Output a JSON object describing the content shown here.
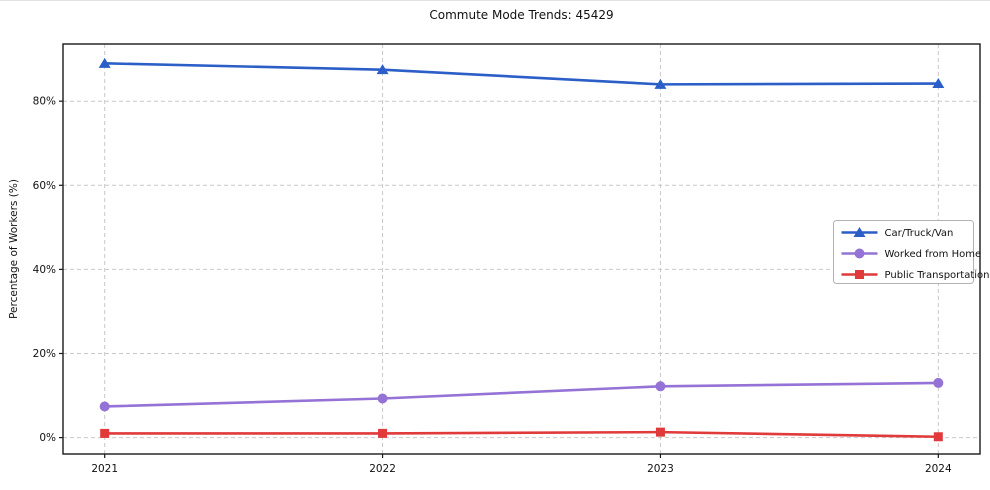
{
  "page": {
    "background": "#ffffff",
    "plot_border_color": "#1a1a1a",
    "grid_color": "#c9c9c9"
  },
  "chart_data": {
    "type": "line",
    "title": "Commute Mode Trends: 45429",
    "xlabel": "",
    "ylabel": "Percentage of Workers (%)",
    "x": [
      2021,
      2022,
      2023,
      2024
    ],
    "x_tick_labels": [
      "2021",
      "2022",
      "2023",
      "2024"
    ],
    "y_ticks": [
      0,
      20,
      40,
      60,
      80
    ],
    "y_tick_labels": [
      "0%",
      "20%",
      "40%",
      "60%",
      "80%"
    ],
    "xlim": [
      2020.85,
      2024.15
    ],
    "ylim": [
      -3.9,
      93.6
    ],
    "grid": "dashed-both-axes",
    "legend_position": "center-right",
    "series": [
      {
        "name": "Car/Truck/Van",
        "marker": "triangle",
        "color": "#2b5fc7",
        "values": [
          89.0,
          87.5,
          84.0,
          84.2
        ]
      },
      {
        "name": "Worked from Home",
        "marker": "circle",
        "color": "#9572d6",
        "values": [
          7.4,
          9.3,
          12.2,
          13.0
        ]
      },
      {
        "name": "Public Transportation",
        "marker": "square",
        "color": "#e03a3a",
        "values": [
          1.0,
          1.0,
          1.3,
          0.2
        ]
      }
    ]
  }
}
